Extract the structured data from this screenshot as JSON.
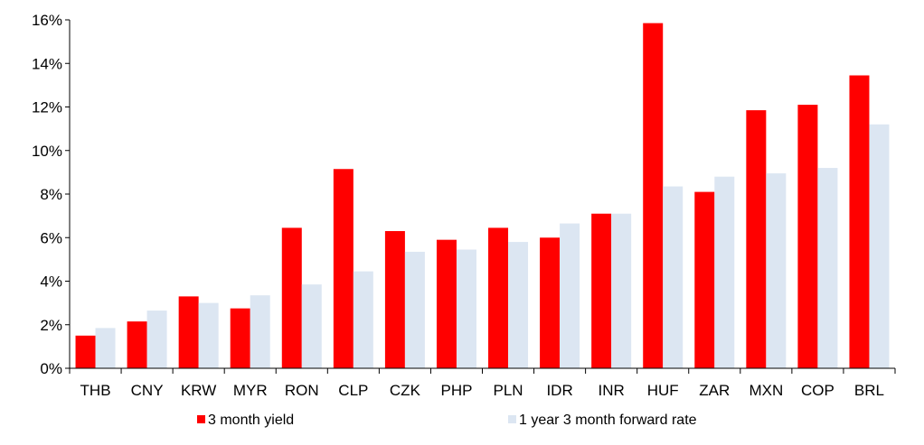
{
  "chart_data": {
    "type": "bar",
    "categories": [
      "THB",
      "CNY",
      "KRW",
      "MYR",
      "RON",
      "CLP",
      "CZK",
      "PHP",
      "PLN",
      "IDR",
      "INR",
      "HUF",
      "ZAR",
      "MXN",
      "COP",
      "BRL"
    ],
    "series": [
      {
        "name": "3 month yield",
        "color": "#ff0000",
        "values": [
          1.5,
          2.15,
          3.3,
          2.75,
          6.45,
          9.15,
          6.3,
          5.9,
          6.45,
          6.0,
          7.1,
          15.85,
          8.1,
          11.85,
          12.1,
          13.45
        ]
      },
      {
        "name": "1 year 3 month forward rate",
        "color": "#dce6f2",
        "values": [
          1.85,
          2.65,
          3.0,
          3.35,
          3.85,
          4.45,
          5.35,
          5.45,
          5.8,
          6.65,
          7.1,
          8.35,
          8.8,
          8.95,
          9.2,
          11.2
        ]
      }
    ],
    "y_ticks": [
      "0%",
      "2%",
      "4%",
      "6%",
      "8%",
      "10%",
      "12%",
      "14%",
      "16%"
    ],
    "ylim": [
      0,
      16
    ],
    "grid": false,
    "legend_position": "bottom"
  }
}
